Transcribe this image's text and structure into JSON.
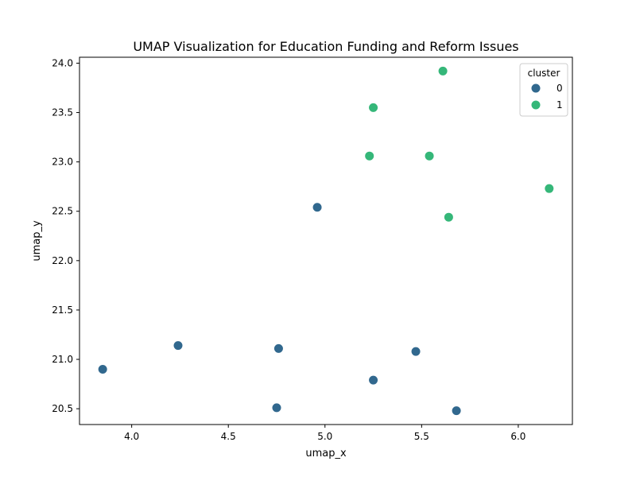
{
  "chart_data": {
    "type": "scatter",
    "title": "UMAP Visualization for Education Funding and Reform Issues",
    "xlabel": "umap_x",
    "ylabel": "umap_y",
    "xlim": [
      3.73,
      6.28
    ],
    "ylim": [
      20.34,
      24.06
    ],
    "xticks": [
      "4.0",
      "4.5",
      "5.0",
      "5.5",
      "6.0"
    ],
    "yticks": [
      "20.5",
      "21.0",
      "21.5",
      "22.0",
      "22.5",
      "23.0",
      "23.5",
      "24.0"
    ],
    "grid": false,
    "legend": {
      "title": "cluster",
      "position": "top-right"
    },
    "series": [
      {
        "name": "0",
        "color": "#31688e",
        "points": [
          {
            "x": 3.85,
            "y": 20.9
          },
          {
            "x": 4.24,
            "y": 21.14
          },
          {
            "x": 4.76,
            "y": 21.11
          },
          {
            "x": 4.75,
            "y": 20.51
          },
          {
            "x": 4.96,
            "y": 22.54
          },
          {
            "x": 5.25,
            "y": 20.79
          },
          {
            "x": 5.47,
            "y": 21.08
          },
          {
            "x": 5.68,
            "y": 20.48
          }
        ]
      },
      {
        "name": "1",
        "color": "#35b779",
        "points": [
          {
            "x": 5.61,
            "y": 23.92
          },
          {
            "x": 5.25,
            "y": 23.55
          },
          {
            "x": 5.23,
            "y": 23.06
          },
          {
            "x": 5.54,
            "y": 23.06
          },
          {
            "x": 5.64,
            "y": 22.44
          },
          {
            "x": 6.16,
            "y": 22.73
          }
        ]
      }
    ]
  }
}
